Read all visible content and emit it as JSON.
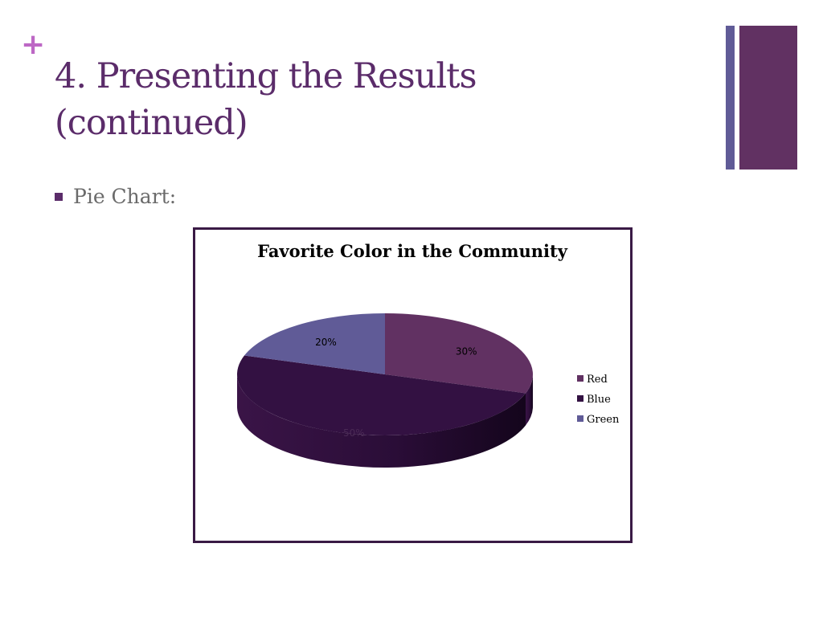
{
  "slide": {
    "plus_symbol": "+",
    "title": "4. Presenting the Results (continued)",
    "bullet": "Pie Chart:"
  },
  "colors": {
    "accent": "#bd68c5",
    "title": "#5b2c6a",
    "deco_thin": "#605b97",
    "deco_thick": "#613162",
    "bullet": "#5b2c6a"
  },
  "chart_data": {
    "type": "pie",
    "style": "3d",
    "title": "Favorite Color in the Community",
    "categories": [
      "Red",
      "Blue",
      "Green"
    ],
    "values": [
      30,
      50,
      20
    ],
    "data_labels": [
      "30%",
      "50%",
      "20%"
    ],
    "colors": [
      "#613162",
      "#331142",
      "#605b97"
    ],
    "legend": "right"
  }
}
